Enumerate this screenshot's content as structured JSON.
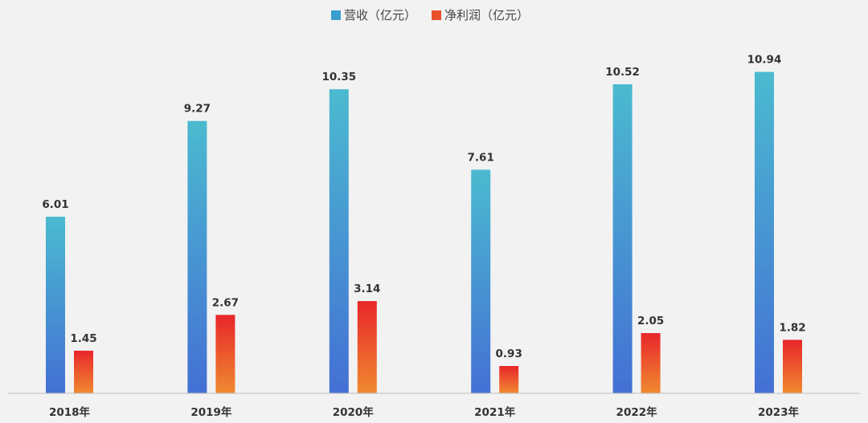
{
  "chart_data": {
    "type": "bar",
    "title": "",
    "xlabel": "",
    "ylabel": "",
    "ylim": [
      0,
      11
    ],
    "grid": false,
    "legend_position": "top-center",
    "categories": [
      "2018年",
      "2019年",
      "2020年",
      "2021年",
      "2022年",
      "2023年"
    ],
    "series": [
      {
        "name": "营收（亿元）",
        "values": [
          6.01,
          9.27,
          10.35,
          7.61,
          10.52,
          10.94
        ],
        "colors": {
          "top": "#4bbad0",
          "bottom": "#4470d4",
          "legend": "#3a9fd0"
        }
      },
      {
        "name": "净利润（亿元）",
        "values": [
          1.45,
          2.67,
          3.14,
          0.93,
          2.05,
          1.82
        ],
        "colors": {
          "top": "#e8262a",
          "bottom": "#f08a30",
          "legend": "#e8502a"
        }
      }
    ],
    "axis_color": "#bfbfbf"
  }
}
